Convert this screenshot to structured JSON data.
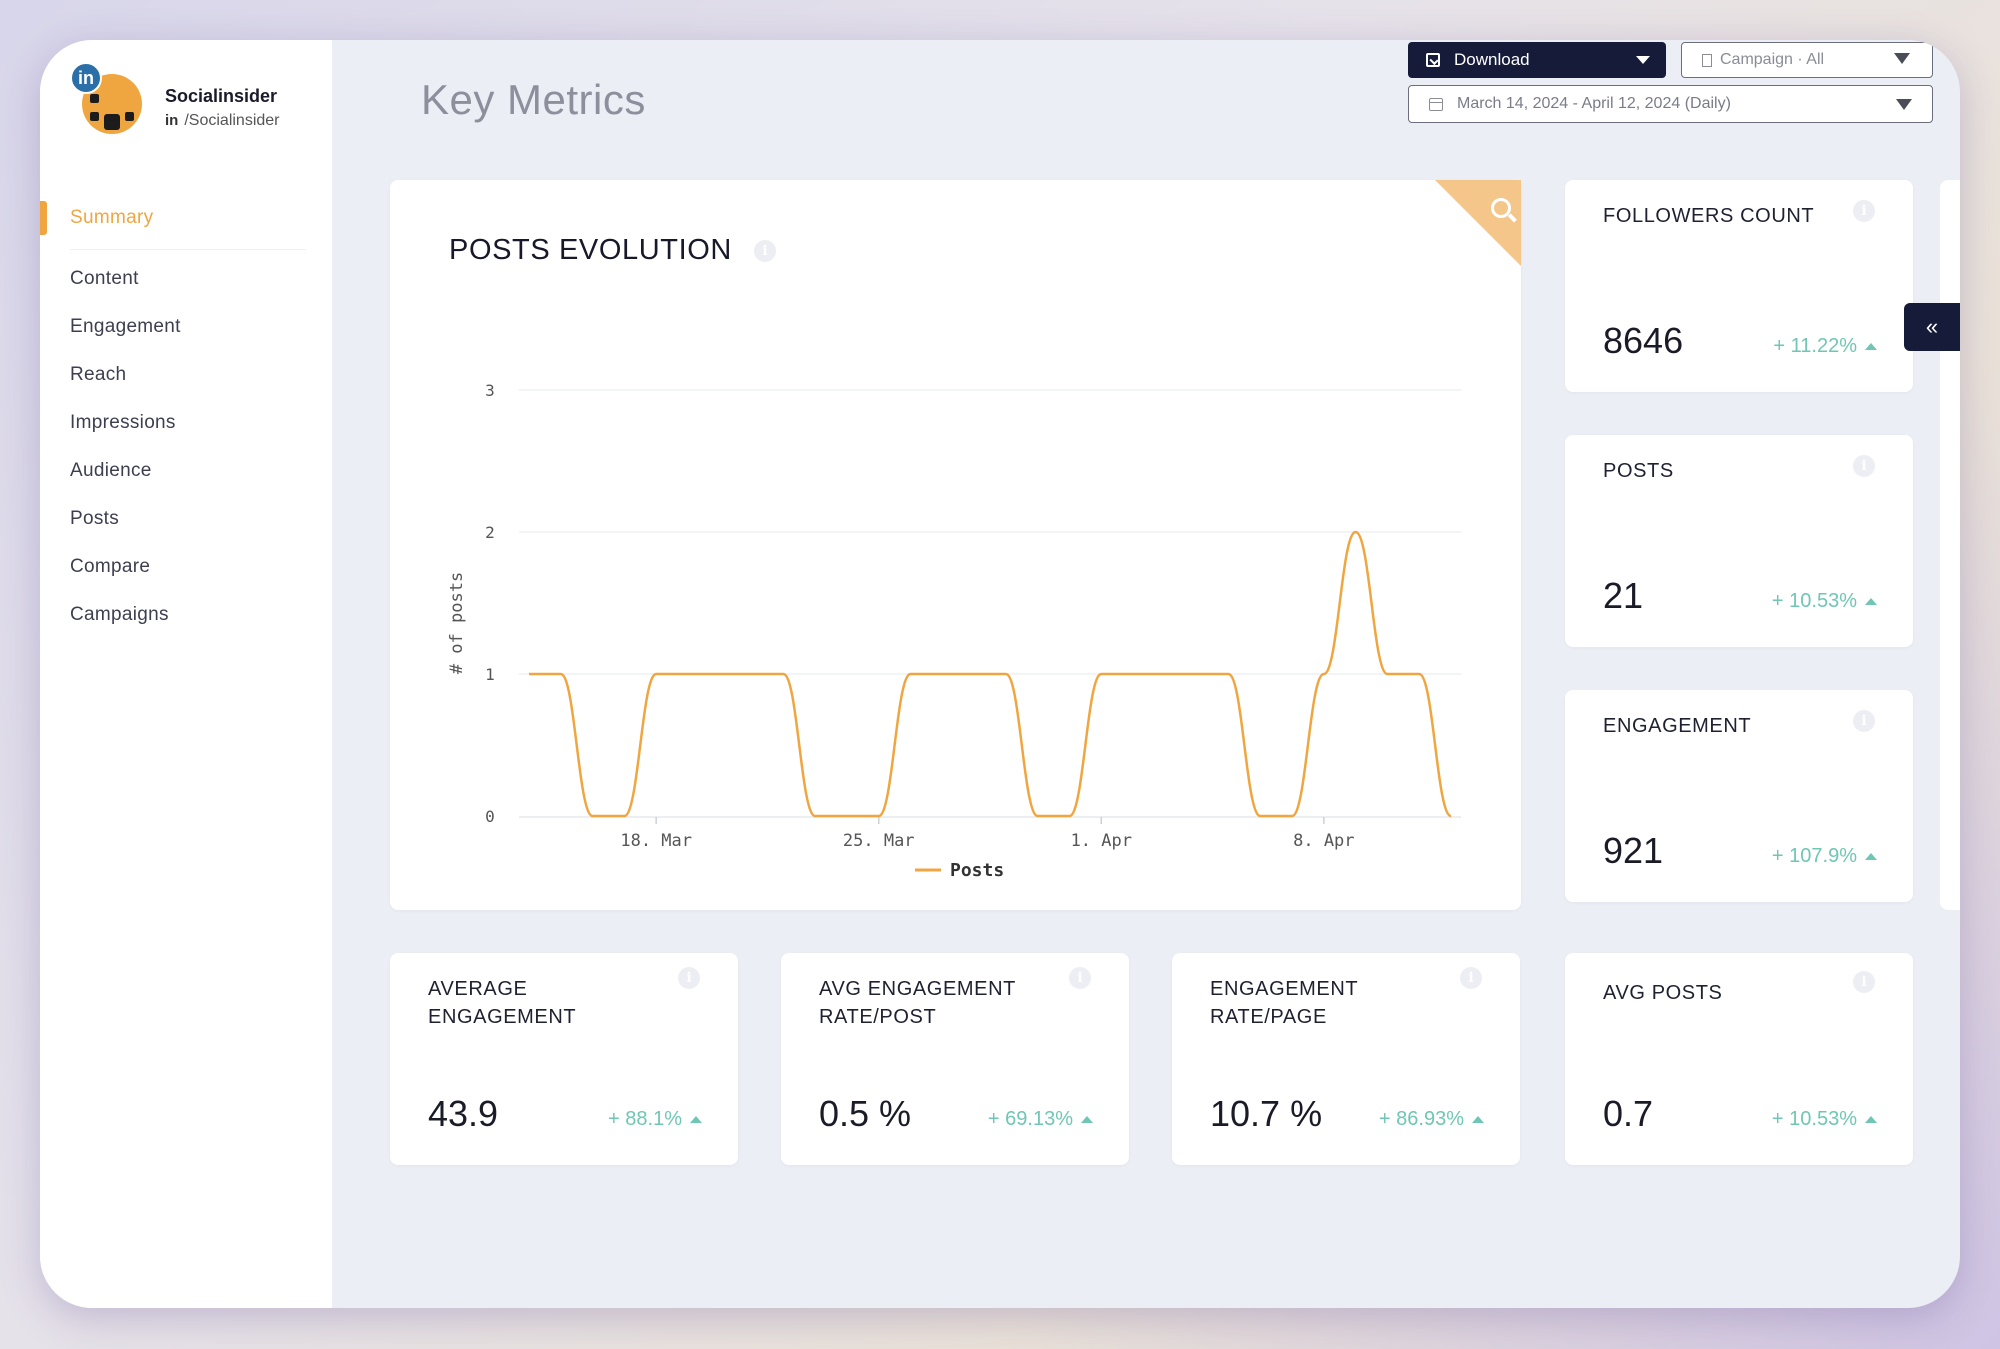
{
  "profile": {
    "name": "Socialinsider",
    "network_badge": "in",
    "handle_prefix": "in",
    "handle": "/Socialinsider"
  },
  "sidebar": {
    "items": [
      {
        "label": "Summary",
        "active": true
      },
      {
        "label": "Content"
      },
      {
        "label": "Engagement"
      },
      {
        "label": "Reach"
      },
      {
        "label": "Impressions"
      },
      {
        "label": "Audience"
      },
      {
        "label": "Posts"
      },
      {
        "label": "Compare"
      },
      {
        "label": "Campaigns"
      }
    ]
  },
  "header": {
    "title": "Key Metrics",
    "download_label": "Download",
    "campaign_label": "Campaign · All",
    "date_range": "March 14, 2024 - April 12, 2024 (Daily)"
  },
  "colors": {
    "accent": "#f0a640",
    "positive": "#6fc6b4",
    "dark": "#161b3a"
  },
  "chart": {
    "title": "POSTS EVOLUTION"
  },
  "chart_data": {
    "type": "line",
    "title": "POSTS EVOLUTION",
    "ylabel": "# of posts",
    "xlabel": "",
    "ylim": [
      0,
      3
    ],
    "y_ticks": [
      "0",
      "1",
      "2",
      "3"
    ],
    "x_ticks": [
      "18. Mar",
      "25. Mar",
      "1. Apr",
      "8. Apr"
    ],
    "x_tick_days": [
      4,
      11,
      18,
      25
    ],
    "legend": "bottom-center",
    "grid": true,
    "series": [
      {
        "name": "Posts",
        "color": "#f0a640",
        "x": [
          "Mar 14",
          "Mar 15",
          "Mar 16",
          "Mar 17",
          "Mar 18",
          "Mar 19",
          "Mar 20",
          "Mar 21",
          "Mar 22",
          "Mar 23",
          "Mar 24",
          "Mar 25",
          "Mar 26",
          "Mar 27",
          "Mar 28",
          "Mar 29",
          "Mar 30",
          "Mar 31",
          "Apr 1",
          "Apr 2",
          "Apr 3",
          "Apr 4",
          "Apr 5",
          "Apr 6",
          "Apr 7",
          "Apr 8",
          "Apr 9",
          "Apr 10",
          "Apr 11",
          "Apr 12"
        ],
        "values": [
          1,
          1,
          0,
          0,
          1,
          1,
          1,
          1,
          1,
          0,
          0,
          0,
          1,
          1,
          1,
          1,
          0,
          0,
          1,
          1,
          1,
          1,
          1,
          0,
          0,
          1,
          2,
          1,
          1,
          0
        ]
      }
    ]
  },
  "metrics": {
    "followers": {
      "label": "FOLLOWERS COUNT",
      "value": "8646",
      "delta": "+ 11.22%"
    },
    "posts": {
      "label": "POSTS",
      "value": "21",
      "delta": "+ 10.53%"
    },
    "engagement": {
      "label": "ENGAGEMENT",
      "value": "921",
      "delta": "+ 107.9%"
    },
    "avg_engagement": {
      "label": "AVERAGE ENGAGEMENT",
      "value": "43.9",
      "delta": "+ 88.1%"
    },
    "avg_eng_rate_post": {
      "label": "AVG ENGAGEMENT RATE/POST",
      "value": "0.5 %",
      "delta": "+ 69.13%"
    },
    "eng_rate_page": {
      "label": "ENGAGEMENT RATE/PAGE",
      "value": "10.7 %",
      "delta": "+ 86.93%"
    },
    "avg_posts": {
      "label": "AVG POSTS",
      "value": "0.7",
      "delta": "+ 10.53%"
    }
  },
  "icons": {
    "info": "i",
    "collapse": "«"
  }
}
